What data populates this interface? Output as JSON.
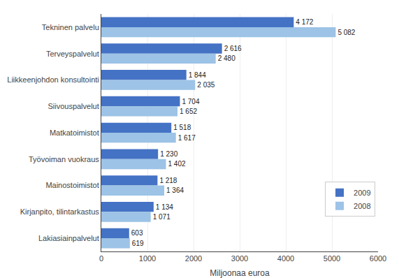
{
  "chart_data": {
    "type": "bar",
    "orientation": "horizontal",
    "categories": [
      "Lakiasiainpalvelut",
      "Kirjanpito, tilintarkastus",
      "Mainostoimistot",
      "Työvoiman vuokraus",
      "Matkatoimistot",
      "Siivouspalvelut",
      "Liikkeenjohdon konsultointi",
      "Terveyspalvelut",
      "Tekninen palvelu"
    ],
    "series": [
      {
        "name": "2009",
        "color": "#4472C4",
        "values": [
          603,
          1134,
          1218,
          1230,
          1518,
          1704,
          1844,
          2616,
          4172
        ],
        "value_labels": [
          "603",
          "1 134",
          "1 218",
          "1 230",
          "1 518",
          "1 704",
          "1 844",
          "2 616",
          "4 172"
        ]
      },
      {
        "name": "2008",
        "color": "#9DC3E6",
        "values": [
          619,
          1071,
          1364,
          1402,
          1617,
          1652,
          2035,
          2480,
          5082
        ],
        "value_labels": [
          "619",
          "1 071",
          "1 364",
          "1 402",
          "1 617",
          "1 652",
          "2 035",
          "2 480",
          "5 082"
        ]
      }
    ],
    "x_label": "Miljoonaa euroa",
    "xlim": [
      0,
      6000
    ],
    "xticks": [
      0,
      1000,
      2000,
      3000,
      4000,
      5000,
      6000
    ],
    "grid": true,
    "legend": "right",
    "data_labels": true
  }
}
